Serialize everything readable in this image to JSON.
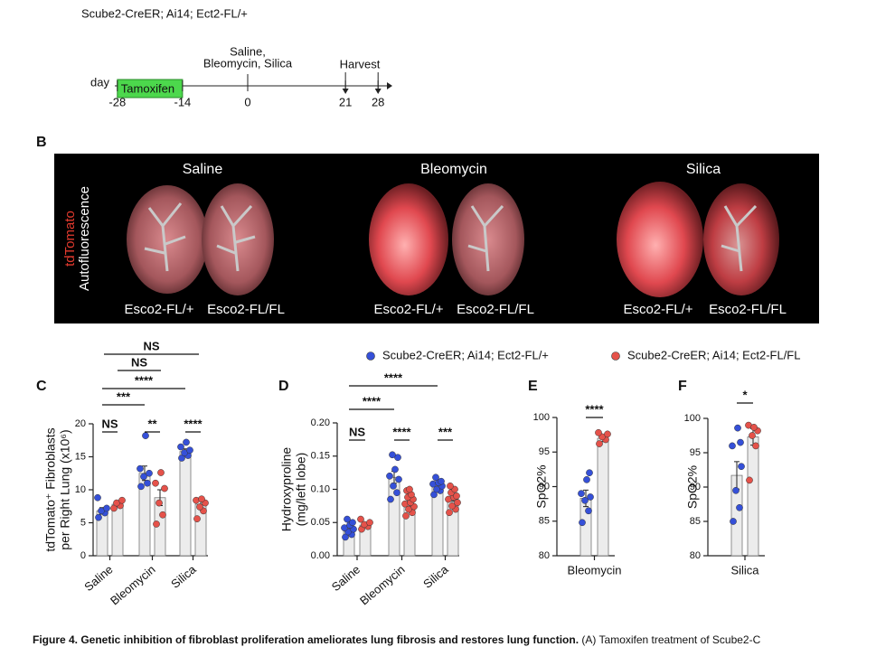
{
  "header": {
    "genotype_line": "Scube2-CreER; Ai14; Ect2-FL/+"
  },
  "timeline": {
    "axis_label": "day",
    "treatment": "Tamoxifen",
    "ticks": [
      -28,
      -14,
      0,
      21,
      28
    ],
    "injury_label": [
      "Saline,",
      "Bleomycin, Silica"
    ],
    "harvest_label": "Harvest"
  },
  "panel_b": {
    "letter": "B",
    "channel_red": "tdTomato",
    "channel_white": "Autofluorescence",
    "groups": [
      "Saline",
      "Bleomycin",
      "Silica"
    ],
    "genotypes": [
      "Esco2-FL/+",
      "Esco2-FL/FL"
    ]
  },
  "legend": [
    {
      "name": "Scube2-CreER; Ai14; Ect2-FL/+",
      "color": "#3550d8"
    },
    {
      "name": "Scube2-CreER; Ai14; Ect2-FL/FL",
      "color": "#e5524a"
    }
  ],
  "chart_data": [
    {
      "type": "bar",
      "panel": "C",
      "ylabel": [
        "tdTomato⁺ Fibroblasts",
        "per Right Lung (x10⁶)"
      ],
      "categories": [
        "Saline",
        "Bleomycin",
        "Silica"
      ],
      "ylim": [
        0,
        20
      ],
      "yticks": [
        0,
        5,
        10,
        15,
        20
      ],
      "series": [
        {
          "values": [
            6.8,
            12.5,
            15.8
          ],
          "errors": [
            0.5,
            1.1,
            0.4
          ],
          "points": [
            [
              5.8,
              6.5,
              6.8,
              7.2,
              8.8
            ],
            [
              10.5,
              11,
              12,
              12.5,
              13.2,
              18.2
            ],
            [
              14.8,
              15.2,
              15.6,
              16,
              16.5,
              17.2
            ]
          ]
        },
        {
          "values": [
            7.8,
            8.8,
            7.8
          ],
          "errors": [
            0.3,
            1.2,
            0.6
          ],
          "points": [
            [
              7.2,
              7.6,
              8,
              8.4
            ],
            [
              4.8,
              6.2,
              8,
              10.2,
              11,
              12.6
            ],
            [
              5.6,
              6.8,
              7.4,
              8,
              8.4,
              8.6
            ]
          ]
        }
      ],
      "annotations": [
        "NS",
        "**",
        "****",
        "***",
        "****",
        "NS",
        "NS"
      ]
    },
    {
      "type": "bar",
      "panel": "D",
      "ylabel": [
        "Hydroxyproline",
        "(mg/left lobe)"
      ],
      "categories": [
        "Saline",
        "Bleomycin",
        "Silica"
      ],
      "ylim": [
        0,
        0.2
      ],
      "yticks": [
        {
          "value": 0,
          "label": "0.00"
        },
        {
          "value": 0.05,
          "label": "0.05"
        },
        {
          "value": 0.1,
          "label": "0.10"
        },
        {
          "value": 0.15,
          "label": "0.15"
        },
        {
          "value": 0.2,
          "label": "0.20"
        }
      ],
      "series": [
        {
          "values": [
            0.04,
            0.118,
            0.106
          ],
          "errors": [
            0.004,
            0.009,
            0.004
          ],
          "points": [
            [
              0.028,
              0.032,
              0.036,
              0.04,
              0.042,
              0.046,
              0.05,
              0.055
            ],
            [
              0.085,
              0.095,
              0.105,
              0.115,
              0.12,
              0.13,
              0.148,
              0.152
            ],
            [
              0.092,
              0.098,
              0.1,
              0.105,
              0.108,
              0.11,
              0.112,
              0.118
            ]
          ]
        },
        {
          "values": [
            0.046,
            0.078,
            0.085
          ],
          "errors": [
            0.003,
            0.004,
            0.003
          ],
          "points": [
            [
              0.04,
              0.044,
              0.047,
              0.05,
              0.055
            ],
            [
              0.06,
              0.065,
              0.07,
              0.074,
              0.078,
              0.08,
              0.085,
              0.088,
              0.092,
              0.098,
              0.1
            ],
            [
              0.065,
              0.07,
              0.075,
              0.08,
              0.085,
              0.088,
              0.09,
              0.095,
              0.1,
              0.105
            ]
          ]
        }
      ],
      "annotations": [
        "NS",
        "****",
        "***",
        "****",
        "****"
      ]
    },
    {
      "type": "bar",
      "panel": "E",
      "ylabel": [
        "SpO2%"
      ],
      "categories": [
        "Bleomycin"
      ],
      "ylim": [
        80,
        100
      ],
      "yticks": [
        80,
        85,
        90,
        95,
        100
      ],
      "series": [
        {
          "values": [
            88.3
          ],
          "errors": [
            1.2
          ],
          "points": [
            [
              84.8,
              86.5,
              88,
              88.5,
              89,
              91,
              92
            ]
          ]
        },
        {
          "values": [
            97.0
          ],
          "errors": [
            0.5
          ],
          "points": [
            [
              96.2,
              96.8,
              97.2,
              97.6,
              97.8
            ]
          ]
        }
      ],
      "annotations": [
        "****"
      ]
    },
    {
      "type": "bar",
      "panel": "F",
      "ylabel": [
        "SpO2%"
      ],
      "categories": [
        "Silica"
      ],
      "ylim": [
        80,
        100
      ],
      "yticks": [
        80,
        85,
        90,
        95,
        100
      ],
      "series": [
        {
          "values": [
            91.7
          ],
          "errors": [
            2.0
          ],
          "points": [
            [
              85,
              87,
              89.5,
              93,
              96,
              98.6,
              96.5
            ]
          ]
        },
        {
          "values": [
            97.3
          ],
          "errors": [
            1.2
          ],
          "points": [
            [
              91,
              96,
              97.5,
              98.2,
              99,
              98.7
            ]
          ]
        }
      ],
      "annotations": [
        "*"
      ]
    }
  ],
  "caption": {
    "title": "Figure 4. Genetic inhibition of fibroblast proliferation ameliorates lung fibrosis and restores lung function.",
    "text": "(A) Tamoxifen treatment of Scube2-C"
  }
}
